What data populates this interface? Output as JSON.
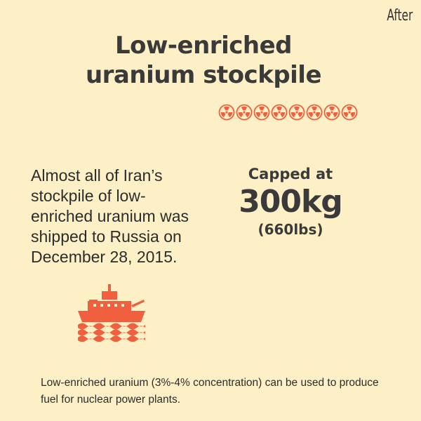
{
  "corner_label": "After",
  "title_line1": "Low-enriched",
  "title_line2": "uranium stockpile",
  "hazard_icons": {
    "count": 8,
    "color": "#f0603e",
    "icon": "radiation-hazard-icon"
  },
  "description": "Almost all of Iran’s stockpile of low-enriched uranium was shipped to Russia on December 28, 2015.",
  "cap": {
    "label": "Capped at",
    "value": "300kg",
    "alt": "(660lbs)"
  },
  "ship_icon": {
    "icon": "ship-icon",
    "color": "#f0603e"
  },
  "footnote": "Low-enriched uranium (3%-4% concentration) can be used to produce fuel for nuclear power plants.",
  "colors": {
    "background": "#fdf0c6",
    "accent": "#f0603e",
    "text": "#2f2f2f"
  }
}
